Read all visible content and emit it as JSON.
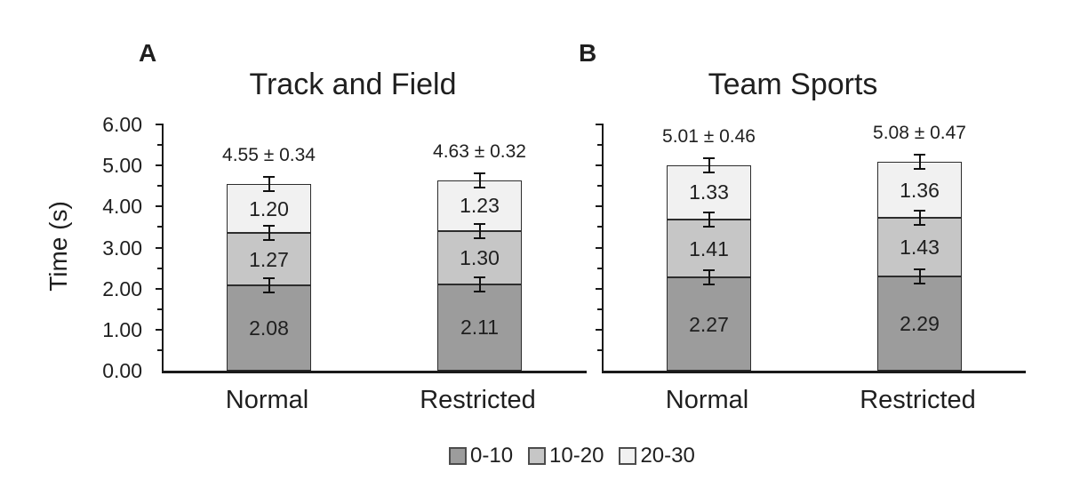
{
  "figure": {
    "background": "#ffffff",
    "text_color": "#1f1f1f",
    "axis_color": "#1a1a1a",
    "segment_border_color": "#2d2d2d",
    "ylabel": "Time (s)",
    "y_ticks": [
      "6.00",
      "5.00",
      "4.00",
      "3.00",
      "2.00",
      "1.00",
      "0.00"
    ],
    "legend": {
      "position": "bottom-center",
      "items": [
        {
          "label": "0-10",
          "color": "#9c9c9c"
        },
        {
          "label": "10-20",
          "color": "#c6c6c6"
        },
        {
          "label": "20-30",
          "color": "#f1f1f1"
        }
      ]
    }
  },
  "chart_data": [
    {
      "type": "bar",
      "stacked": true,
      "panel_label": "A",
      "title": "Track and Field",
      "categories": [
        "Normal",
        "Restricted"
      ],
      "series": [
        {
          "name": "0-10",
          "color": "#9c9c9c",
          "values": [
            2.08,
            2.11
          ]
        },
        {
          "name": "10-20",
          "color": "#c6c6c6",
          "values": [
            1.27,
            1.3
          ]
        },
        {
          "name": "20-30",
          "color": "#f1f1f1",
          "values": [
            1.2,
            1.23
          ]
        }
      ],
      "totals": [
        {
          "mean": 4.55,
          "sd": 0.34,
          "label": "4.55 ± 0.34"
        },
        {
          "mean": 4.63,
          "sd": 0.32,
          "label": "4.63 ± 0.32"
        }
      ],
      "xlabel": "",
      "ylabel": "Time (s)",
      "ylim": [
        0,
        6
      ],
      "y_tick_step": 1.0,
      "y_minor_tick_step": 0.5,
      "grid": false,
      "error_bars": "capped I-beams at each segment boundary and at bar top"
    },
    {
      "type": "bar",
      "stacked": true,
      "panel_label": "B",
      "title": "Team Sports",
      "categories": [
        "Normal",
        "Restricted"
      ],
      "series": [
        {
          "name": "0-10",
          "color": "#9c9c9c",
          "values": [
            2.27,
            2.29
          ]
        },
        {
          "name": "10-20",
          "color": "#c6c6c6",
          "values": [
            1.41,
            1.43
          ]
        },
        {
          "name": "20-30",
          "color": "#f1f1f1",
          "values": [
            1.33,
            1.36
          ]
        }
      ],
      "totals": [
        {
          "mean": 5.01,
          "sd": 0.46,
          "label": "5.01 ± 0.46"
        },
        {
          "mean": 5.08,
          "sd": 0.47,
          "label": "5.08 ± 0.47"
        }
      ],
      "xlabel": "",
      "ylabel": "",
      "ylim": [
        0,
        6
      ],
      "y_tick_step": 1.0,
      "y_minor_tick_step": 0.5,
      "grid": false,
      "error_bars": "capped I-beams at each segment boundary and at bar top"
    }
  ]
}
